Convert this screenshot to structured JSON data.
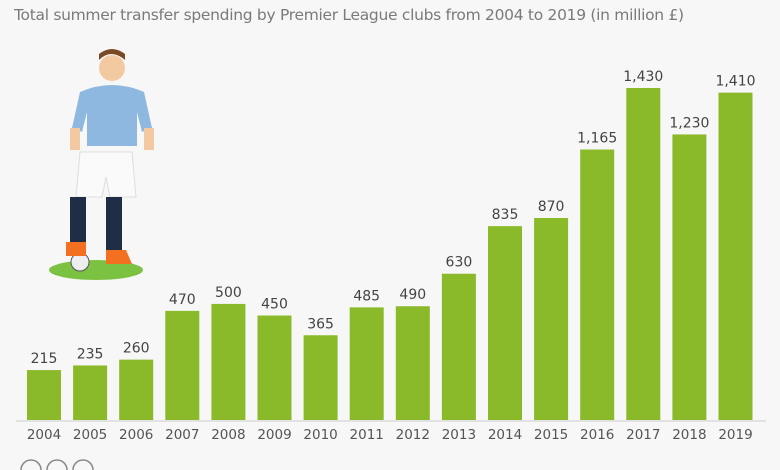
{
  "chart_data": {
    "type": "bar",
    "subtitle": "Total summer transfer spending by Premier League clubs from 2004 to 2019 (in million £)",
    "categories": [
      "2004",
      "2005",
      "2006",
      "2007",
      "2008",
      "2009",
      "2010",
      "2011",
      "2012",
      "2013",
      "2014",
      "2015",
      "2016",
      "2017",
      "2018",
      "2019"
    ],
    "values": [
      215,
      235,
      260,
      470,
      500,
      450,
      365,
      485,
      490,
      630,
      835,
      870,
      1165,
      1430,
      1230,
      1410
    ],
    "labels": [
      "215",
      "235",
      "260",
      "470",
      "500",
      "450",
      "365",
      "485",
      "490",
      "630",
      "835",
      "870",
      "1,165",
      "1,430",
      "1,230",
      "1,410"
    ],
    "ylim": [
      0,
      1430
    ],
    "grid": false,
    "bar_color": "#8aba2a"
  }
}
